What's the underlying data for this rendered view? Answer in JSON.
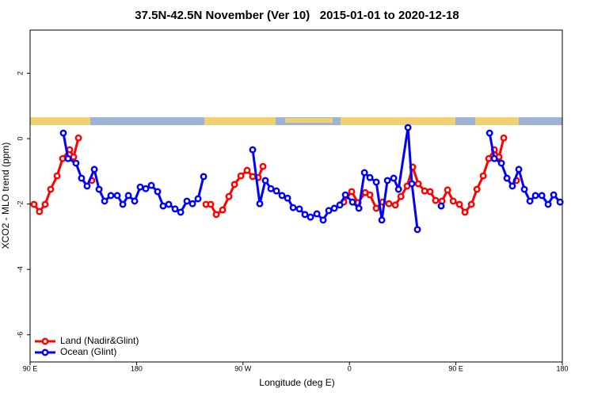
{
  "chart_data": {
    "type": "line",
    "title": "37.5N-42.5N November (Ver 10)   2015-01-01 to 2020-12-18",
    "x_label": "Longitude (deg E)",
    "y_label": "XCO2 - MLO trend (ppm)",
    "xlim": [
      90,
      540
    ],
    "ylim": [
      -6.83,
      3.32
    ],
    "xticks": [
      {
        "value": 90,
        "label": "90 E"
      },
      {
        "value": 180,
        "label": "180"
      },
      {
        "value": 270,
        "label": "90 W"
      },
      {
        "value": 360,
        "label": "0"
      },
      {
        "value": 450,
        "label": "90 E"
      },
      {
        "value": 540,
        "label": "180"
      }
    ],
    "yticks": [
      -6,
      -4,
      -2,
      0,
      2
    ],
    "grid": false,
    "legend": "bottom-left",
    "series": [
      {
        "name": "Land (Nadir&Glint)",
        "color": "#ff0000",
        "x": [
          93.3,
          97.9,
          102.7,
          107.4,
          112.8,
          117.5,
          123.5,
          126.8,
          130.9,
          null,
          142.2,
          null,
          238.7,
          242.7,
          247.4,
          252.8,
          258.1,
          262.8,
          268.2,
          273.5,
          278.2,
          282.9,
          286.9,
          null,
          355.2,
          361.9,
          367.3,
          373.3,
          377.3,
          382.7,
          388.1,
          393.4,
          398.8,
          403.5,
          408.8,
          413.5,
          418.2,
          423.6,
          428.2,
          432.9,
          438.3,
          443.0,
          447.7,
          453.0,
          457.7,
          463.1,
          467.8,
          473.1,
          477.8,
          482.5,
          486.5,
          490.5,
          null,
          501.2
        ],
        "values": [
          -2.01,
          -2.23,
          -2.01,
          -1.55,
          -1.14,
          -0.61,
          -0.34,
          -0.56,
          0.02,
          null,
          -1.28,
          null,
          -2.01,
          -2.01,
          -2.32,
          -2.18,
          -1.77,
          -1.4,
          -1.14,
          -0.97,
          -1.16,
          -1.19,
          -0.85,
          null,
          -1.94,
          -1.62,
          -1.96,
          -1.65,
          -1.72,
          -2.13,
          -1.94,
          -1.99,
          -2.03,
          -1.77,
          -1.45,
          -0.87,
          -1.38,
          -1.6,
          -1.62,
          -1.89,
          -1.91,
          -1.57,
          -1.91,
          -2.01,
          -2.25,
          -2.01,
          -1.55,
          -1.14,
          -0.61,
          -0.34,
          -0.56,
          0.02,
          null,
          -1.28
        ]
      },
      {
        "name": "Ocean (Glint)",
        "color": "#0000ff",
        "x": [
          118.1,
          122.1,
          128.8,
          133.5,
          138.2,
          144.3,
          148.3,
          153.0,
          158.3,
          163.7,
          168.4,
          173.1,
          178.4,
          183.1,
          187.8,
          192.5,
          197.8,
          202.5,
          207.2,
          212.6,
          217.3,
          222.6,
          227.3,
          232.0,
          236.7,
          null,
          278.2,
          284.2,
          288.9,
          293.6,
          298.3,
          303.0,
          307.7,
          312.4,
          317.7,
          322.4,
          327.1,
          332.5,
          337.8,
          342.5,
          347.2,
          351.9,
          356.6,
          362.6,
          368.0,
          372.7,
          377.3,
          382.7,
          387.4,
          392.1,
          397.4,
          401.5,
          409.5,
          412.8,
          417.5,
          null,
          437.6,
          null,
          478.5,
          482.5,
          488.5,
          493.2,
          497.8,
          503.2,
          507.9,
          512.6,
          517.3,
          522.7,
          528.0,
          532.7,
          538.1
        ],
        "values": [
          0.17,
          -0.61,
          -0.75,
          -1.21,
          -1.45,
          -0.94,
          -1.55,
          -1.91,
          -1.74,
          -1.74,
          -2.01,
          -1.74,
          -1.91,
          -1.48,
          -1.53,
          -1.43,
          -1.62,
          -2.06,
          -2.01,
          -2.15,
          -2.25,
          -1.91,
          -1.99,
          -1.84,
          -1.16,
          null,
          -0.34,
          -1.99,
          -1.28,
          -1.53,
          -1.6,
          -1.74,
          -1.82,
          -2.11,
          -2.15,
          -2.32,
          -2.4,
          -2.3,
          -2.49,
          -2.2,
          -2.13,
          -2.03,
          -1.72,
          -1.94,
          -2.13,
          -1.04,
          -1.19,
          -1.33,
          -2.49,
          -1.28,
          -1.21,
          -1.55,
          0.34,
          -1.38,
          -2.78,
          null,
          -2.06,
          null,
          0.17,
          -0.61,
          -0.75,
          -1.21,
          -1.45,
          -0.94,
          -1.55,
          -1.91,
          -1.74,
          -1.74,
          -2.01,
          -1.72,
          -1.94
        ]
      }
    ]
  }
}
